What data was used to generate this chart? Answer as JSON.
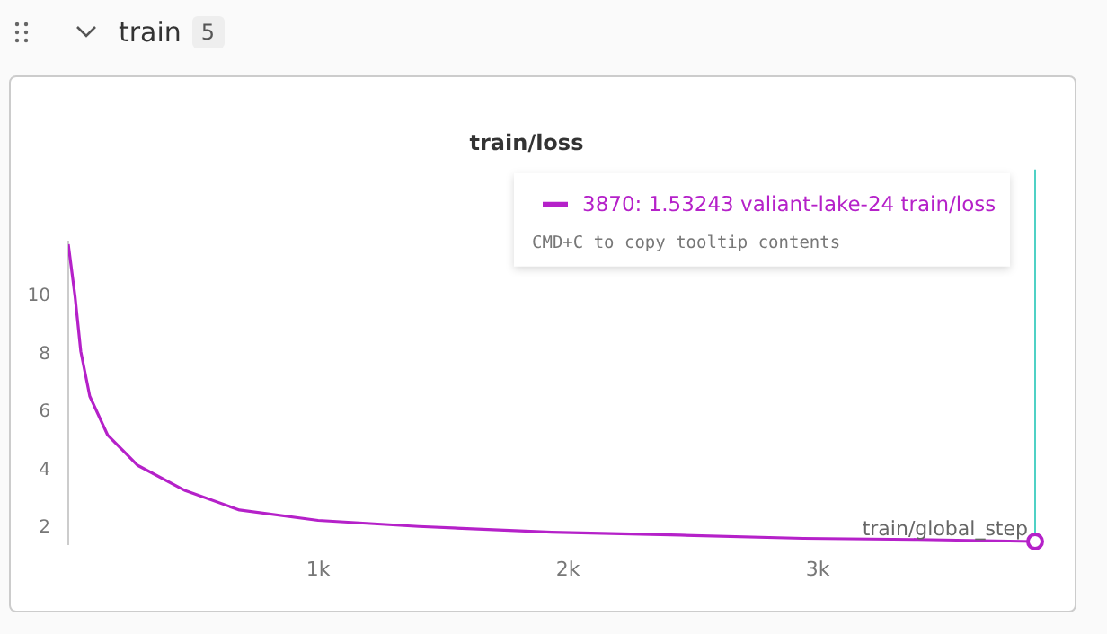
{
  "chart_data": {
    "type": "line",
    "title": "train/loss",
    "xlabel": "train/global_step",
    "x": [
      0,
      27,
      50,
      86,
      158,
      278,
      468,
      685,
      1000,
      1403,
      1935,
      2450,
      2942,
      3400,
      3870
    ],
    "series": [
      {
        "color": "#b521c9",
        "values": [
          11.8,
          10.0,
          8.1,
          6.55,
          5.2,
          4.16,
          3.29,
          2.62,
          2.26,
          2.05,
          1.85,
          1.75,
          1.64,
          1.6,
          1.53
        ]
      }
    ],
    "xlim": [
      0,
      3870
    ],
    "ylim": [
      1.45,
      11.9
    ],
    "xticks": [
      {
        "value": 1000,
        "label": "1k"
      },
      {
        "value": 2000,
        "label": "2k"
      },
      {
        "value": 3000,
        "label": "3k"
      }
    ],
    "yticks": [
      2,
      4,
      6,
      8,
      10
    ],
    "grid": false,
    "legend": false,
    "marker": "none",
    "line_style": "solid",
    "ref_lines": [
      {
        "axis": "x",
        "value": 3870,
        "color": "#4fd1c5"
      }
    ],
    "annotations": [
      "train",
      "5",
      "3870: 1.53243 valiant-lake-24 train/loss",
      "CMD+C to copy tooltip contents"
    ]
  }
}
